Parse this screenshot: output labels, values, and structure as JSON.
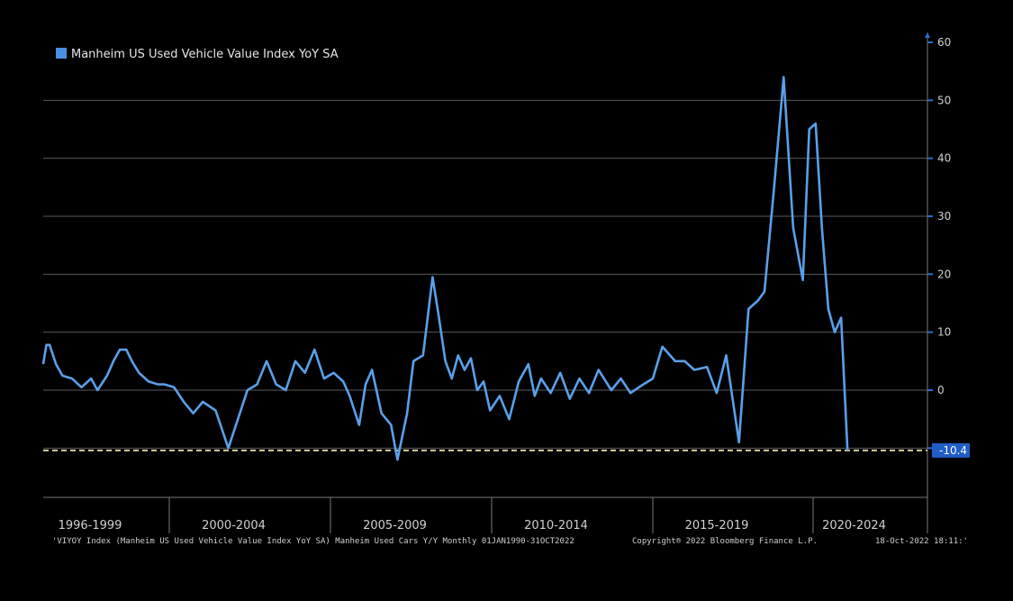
{
  "chart_data": {
    "type": "line",
    "title": "",
    "xlabel": "",
    "ylabel": "",
    "ylim": [
      -18,
      60
    ],
    "yticks": [
      -10,
      0,
      10,
      20,
      30,
      40,
      50,
      60
    ],
    "x_range": [
      1996.0,
      2023.0
    ],
    "x_period_labels": [
      "1996-1999",
      "2000-2004",
      "2005-2009",
      "2010-2014",
      "2015-2019",
      "2020-2024"
    ],
    "grid": true,
    "legend_position": "top-left",
    "legend_color": "#4a90e2",
    "line_color": "#5aa0ea",
    "reference_line": {
      "value": -10.4,
      "label": "-10.4",
      "color": "#d8cfa0"
    },
    "series": [
      {
        "name": "Manheim US Used Vehicle Value Index YoY SA",
        "x": [
          1996.0,
          1996.1,
          1996.2,
          1996.4,
          1996.6,
          1996.9,
          1997.2,
          1997.5,
          1997.7,
          1998.0,
          1998.2,
          1998.4,
          1998.6,
          1998.8,
          1999.0,
          1999.3,
          1999.6,
          1999.8,
          2000.1,
          2000.4,
          2000.7,
          2001.0,
          2001.4,
          2001.8,
          2002.1,
          2002.4,
          2002.7,
          2003.0,
          2003.3,
          2003.6,
          2003.9,
          2004.2,
          2004.5,
          2004.8,
          2005.1,
          2005.4,
          2005.6,
          2005.9,
          2006.1,
          2006.3,
          2006.6,
          2006.9,
          2007.1,
          2007.4,
          2007.6,
          2007.9,
          2008.2,
          2008.4,
          2008.6,
          2008.8,
          2009.0,
          2009.2,
          2009.4,
          2009.6,
          2009.8,
          2010.0,
          2010.3,
          2010.6,
          2010.9,
          2011.2,
          2011.4,
          2011.6,
          2011.9,
          2012.2,
          2012.5,
          2012.8,
          2013.1,
          2013.4,
          2013.8,
          2014.1,
          2014.4,
          2014.8,
          2015.1,
          2015.4,
          2015.8,
          2016.1,
          2016.4,
          2016.8,
          2017.1,
          2017.4,
          2017.8,
          2018.1,
          2018.4,
          2018.6,
          2018.9,
          2019.2,
          2019.5,
          2019.8,
          2020.0,
          2020.2,
          2020.4,
          2020.6,
          2020.8,
          2021.0,
          2021.2,
          2021.4,
          2021.6,
          2021.8,
          2022.0,
          2022.2,
          2022.4,
          2022.5,
          2022.6,
          2022.75
        ],
        "values": [
          4.5,
          7.8,
          7.8,
          4.5,
          2.5,
          2.0,
          0.5,
          2.0,
          0.0,
          2.5,
          5.0,
          7.0,
          7.0,
          4.8,
          3.0,
          1.5,
          1.0,
          1.0,
          0.5,
          -2.0,
          -4.0,
          -2.0,
          -3.5,
          -10.0,
          -5.0,
          0.0,
          1.0,
          5.0,
          1.0,
          0.0,
          5.0,
          3.0,
          7.0,
          2.0,
          3.0,
          1.5,
          -1.0,
          -6.0,
          1.0,
          3.5,
          -4.0,
          -6.0,
          -12.0,
          -4.0,
          5.0,
          6.0,
          19.5,
          12.5,
          5.0,
          2.0,
          6.0,
          3.5,
          5.5,
          0.0,
          1.5,
          -3.5,
          -1.0,
          -5.0,
          1.5,
          4.5,
          -1.0,
          2.0,
          -0.5,
          3.0,
          -1.5,
          2.0,
          -0.5,
          3.5,
          0.0,
          2.0,
          -0.5,
          1.0,
          2.0,
          7.5,
          5.0,
          5.0,
          3.5,
          4.0,
          -0.5,
          6.0,
          -9.0,
          14.0,
          15.5,
          17.0,
          35.0,
          54.0,
          28.0,
          19.0,
          45.0,
          46.0,
          28.0,
          14.0,
          10.0,
          12.5,
          -10.4,
          -10.4,
          -10.4,
          -10.4,
          -10.4,
          -10.4,
          -10.4,
          -10.4,
          -10.4,
          -10.4
        ]
      }
    ],
    "last_value": -10.4,
    "footer_left": "'VIYOY Index (Manheim US Used Vehicle Value Index YoY SA) Manheim Used Cars Y/Y  Monthly 01JAN1990-31OCT2022",
    "footer_mid": "Copyright® 2022 Bloomberg Finance L.P.",
    "footer_right": "18-Oct-2022 18:11:'"
  }
}
